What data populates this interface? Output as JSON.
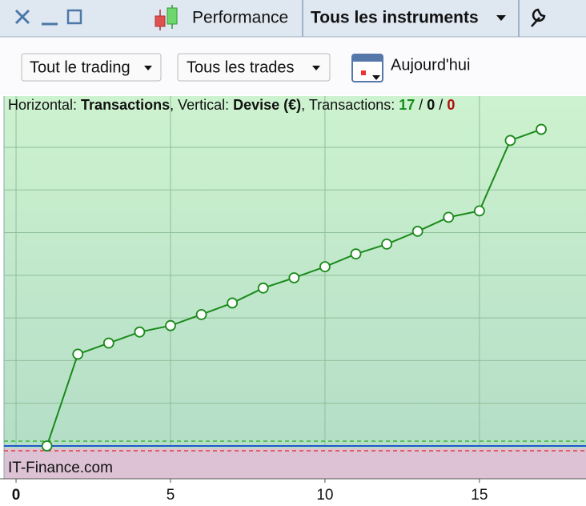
{
  "toolbar": {
    "tab_performance": "Performance",
    "tab_instruments": "Tous les instruments"
  },
  "filters": {
    "trading": "Tout le trading",
    "trades": "Tous les trades",
    "date": "Aujourd'hui"
  },
  "chart_data": {
    "type": "line",
    "header": {
      "horizontal_label": "Horizontal:",
      "horizontal": "Transactions",
      "vertical_label": ", Vertical:",
      "vertical": "Devise (€)",
      "count_label": ", Transactions:",
      "counts": [
        17,
        0,
        0
      ],
      "count_colors": [
        "#1a8a1a",
        "#111111",
        "#b01010"
      ],
      "separator": "/"
    },
    "watermark": "IT-Finance.com",
    "x": [
      1,
      2,
      3,
      4,
      5,
      6,
      7,
      8,
      9,
      10,
      11,
      12,
      13,
      14,
      15,
      16,
      17
    ],
    "values": [
      0,
      2.15,
      2.41,
      2.67,
      2.82,
      3.08,
      3.35,
      3.7,
      3.94,
      4.2,
      4.5,
      4.73,
      5.03,
      5.36,
      5.51,
      7.16,
      7.42
    ],
    "color": "#1a8a1a",
    "xlim": [
      -0.39,
      18.45
    ],
    "xticks": [
      0,
      5,
      10,
      15
    ],
    "ylim": [
      -0.77,
      8.2
    ],
    "ygrid": [
      1,
      2,
      3,
      4,
      5,
      6,
      7
    ],
    "grid": true
  }
}
